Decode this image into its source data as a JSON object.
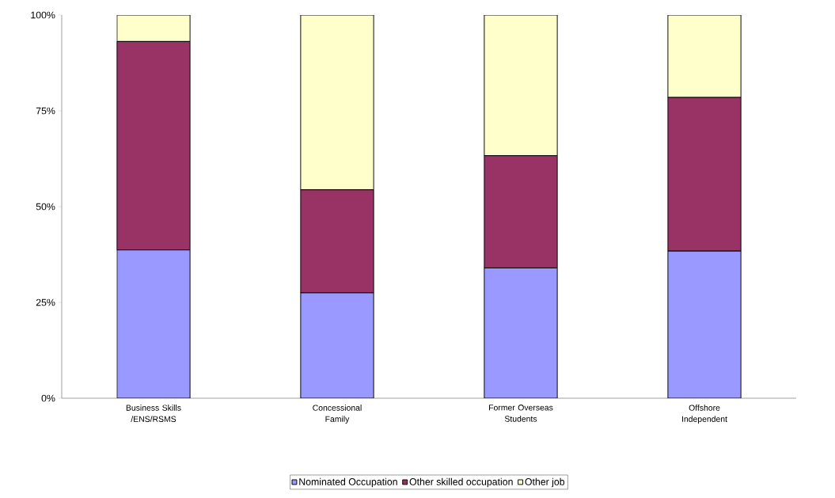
{
  "chart_data": {
    "type": "bar",
    "stacked": true,
    "categories": [
      "Business Skills /ENS/RSMS",
      "Concessional Family",
      "Former Overseas Students",
      "Offshore Independent"
    ],
    "series": [
      {
        "name": "Nominated Occupation",
        "color": "#9999ff",
        "values": [
          38.7,
          27.5,
          34.0,
          38.4
        ]
      },
      {
        "name": "Other skilled occupation",
        "color": "#993366",
        "values": [
          54.4,
          26.9,
          29.3,
          40.1
        ]
      },
      {
        "name": "Other job",
        "color": "#ffffcc",
        "values": [
          6.9,
          45.6,
          36.7,
          21.5
        ]
      }
    ],
    "ylim": [
      0,
      100
    ],
    "yticks": [
      {
        "value": 0,
        "label": "0%"
      },
      {
        "value": 25,
        "label": "25%"
      },
      {
        "value": 50,
        "label": "50%"
      },
      {
        "value": 75,
        "label": "75%"
      },
      {
        "value": 100,
        "label": "100%"
      }
    ],
    "grid": false,
    "legend": "bottom"
  }
}
